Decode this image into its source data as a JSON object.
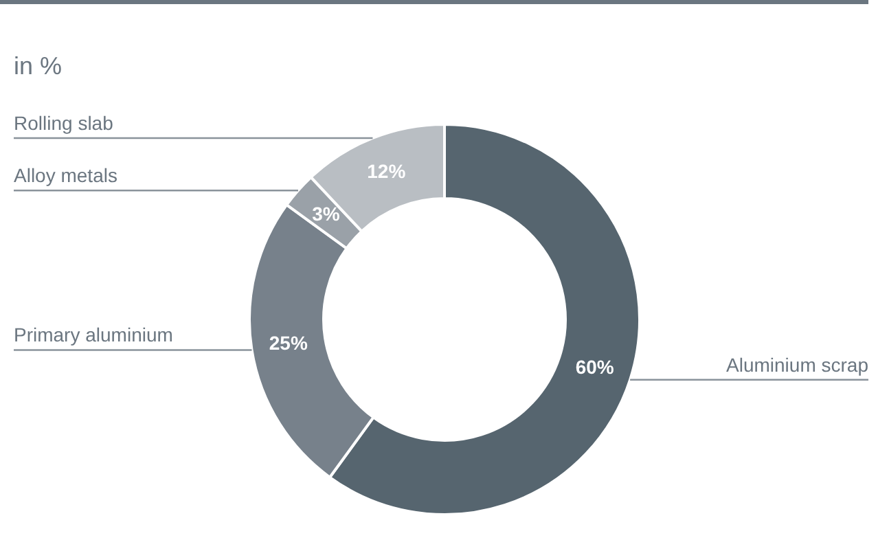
{
  "chart_data": {
    "type": "donut",
    "subtitle": "in %",
    "categories": [
      "Aluminium scrap",
      "Primary aluminium",
      "Alloy metals",
      "Rolling slab"
    ],
    "values": [
      60,
      25,
      3,
      12
    ],
    "value_labels": [
      "60%",
      "25%",
      "3%",
      "12%"
    ],
    "colors": [
      "#56656f",
      "#77818b",
      "#9aa1a8",
      "#b9bec3"
    ]
  }
}
